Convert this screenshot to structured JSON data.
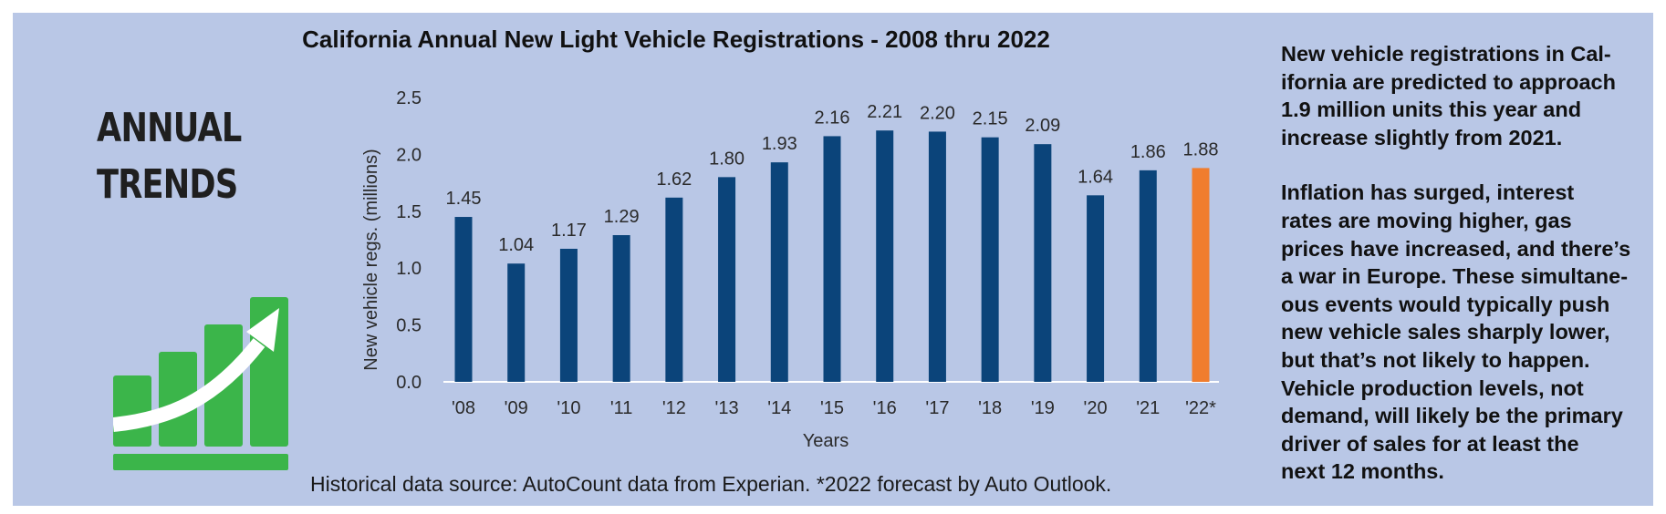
{
  "header": {
    "line1": "ANNUAL",
    "line2": "TRENDS"
  },
  "icons": {
    "trend": "rising-bars-arrow-icon"
  },
  "colors": {
    "background": "#b9c7e6",
    "bar_historical": "#0b447a",
    "bar_forecast": "#f07d2e",
    "icon_green": "#3bb54a"
  },
  "chart_data": {
    "type": "bar",
    "title": "California Annual New Light Vehicle Registrations - 2008 thru 2022",
    "xlabel": "Years",
    "ylabel": "New vehicle regs. (millions)",
    "ylim": [
      0,
      2.5
    ],
    "yticks": [
      "0.0",
      "0.5",
      "1.0",
      "1.5",
      "2.0",
      "2.5"
    ],
    "categories": [
      "'08",
      "'09",
      "'10",
      "'11",
      "'12",
      "'13",
      "'14",
      "'15",
      "'16",
      "'17",
      "'18",
      "'19",
      "'20",
      "'21",
      "'22*"
    ],
    "values": [
      1.45,
      1.04,
      1.17,
      1.29,
      1.62,
      1.8,
      1.93,
      2.16,
      2.21,
      2.2,
      2.15,
      2.09,
      1.64,
      1.86,
      1.88
    ],
    "value_labels": [
      "1.45",
      "1.04",
      "1.17",
      "1.29",
      "1.62",
      "1.80",
      "1.93",
      "2.16",
      "2.21",
      "2.20",
      "2.15",
      "2.09",
      "1.64",
      "1.86",
      "1.88"
    ],
    "highlight_index": 14,
    "grid": false,
    "legend": "none"
  },
  "source_note": "Historical data source: AutoCount data from Experian. *2022 forecast by Auto Outlook.",
  "sidebar": {
    "paragraph1": "New vehicle registrations in Cal-\nifornia are predicted to approach\n1.9 million units this year and\nincrease slightly from 2021.",
    "paragraph2": "Inflation has surged, interest\nrates are moving higher, gas\nprices have increased, and there’s\na war in Europe. These simultane-\nous events would typically push\nnew vehicle sales sharply lower,\nbut that’s not likely to happen.\nVehicle production levels, not\ndemand, will likely be the primary\ndriver of sales for at least the\nnext 12 months."
  }
}
